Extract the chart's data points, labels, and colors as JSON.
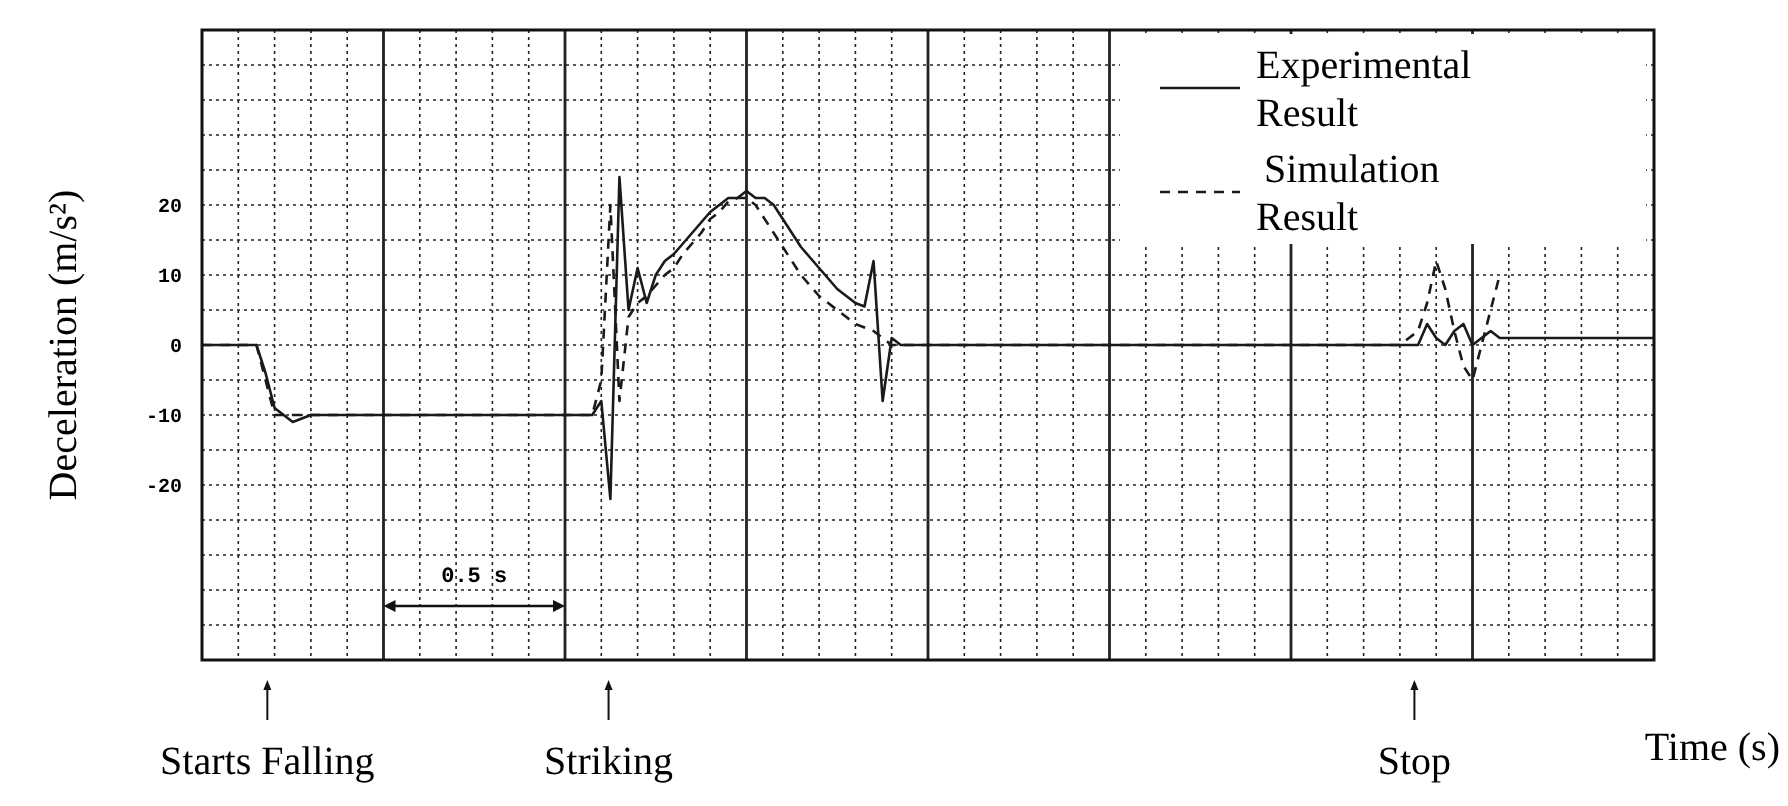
{
  "chart_data": {
    "type": "line",
    "xlabel": "Time (s)",
    "ylabel": "Deceleration (m/s²)",
    "categories": [
      null,
      null,
      null,
      null,
      null,
      null,
      null,
      null,
      null,
      null,
      null,
      null,
      null,
      null,
      null,
      null,
      null,
      null,
      null,
      null,
      null,
      null,
      null,
      null,
      null,
      null,
      null,
      null,
      null,
      null,
      null,
      null,
      null,
      null,
      null,
      null,
      null,
      null,
      null,
      null,
      null,
      null,
      null,
      null,
      null,
      null,
      null,
      null,
      null,
      null,
      null,
      null,
      null,
      null,
      null,
      null,
      null,
      null,
      null,
      null,
      null,
      null,
      null,
      null,
      null,
      null,
      null,
      null,
      null,
      null,
      null,
      null,
      null,
      null,
      null,
      null,
      null,
      null,
      null,
      null,
      null,
      null,
      null,
      null,
      null,
      null,
      null,
      null,
      null,
      null,
      null,
      null,
      null,
      null,
      null,
      null,
      null,
      null,
      null,
      null,
      null,
      null,
      null,
      null,
      null,
      null,
      null,
      null,
      null,
      null,
      null,
      null,
      null,
      null,
      null,
      null,
      null,
      null,
      null,
      null,
      null,
      null,
      null,
      null,
      null,
      null,
      null,
      null,
      null,
      null,
      null,
      null,
      null,
      null,
      null,
      null,
      null,
      null,
      null,
      null,
      null,
      null,
      null,
      null,
      null,
      null,
      null,
      null,
      null,
      null,
      null,
      null,
      null,
      null,
      null,
      null,
      null,
      null,
      null,
      null,
      null
    ],
    "ylim": [
      -45,
      45
    ],
    "yticks": [
      {
        "value": -40,
        "label": null
      },
      {
        "value": -35,
        "label": null
      },
      {
        "value": -30,
        "label": null
      },
      {
        "value": -25,
        "label": null
      },
      -20,
      {
        "value": -15,
        "label": null
      },
      -10,
      {
        "value": -5,
        "label": null
      },
      0,
      {
        "value": 5,
        "label": null
      },
      10,
      {
        "value": 15,
        "label": null
      },
      20,
      {
        "value": 25,
        "label": null
      },
      {
        "value": 30,
        "label": null
      },
      {
        "value": 35,
        "label": null
      },
      {
        "value": 40,
        "label": null
      }
    ],
    "grid": true,
    "legend": "top right",
    "tick_labels": "y",
    "series": [
      {
        "name": "Experimental Result",
        "color": "#1a1a1a",
        "line_style": "solid",
        "values": [
          0,
          0,
          0,
          0,
          0,
          0,
          0,
          -4,
          -9,
          -10,
          -11,
          -10.5,
          -10,
          -10,
          -10,
          -10,
          -10,
          -10,
          -10,
          -10,
          -10,
          -10,
          -10,
          -10,
          -10,
          -10,
          -10,
          -10,
          -10,
          -10,
          -10,
          -10,
          -10,
          -10,
          -10,
          -10,
          -10,
          -10,
          -10,
          -10,
          -10,
          -10,
          -10,
          -10,
          -8,
          -22,
          24,
          5,
          11,
          6,
          10,
          12,
          13,
          14.5,
          16,
          17.5,
          19,
          20,
          21,
          21,
          22,
          21,
          21,
          20,
          18,
          16,
          14,
          12.5,
          11,
          9.5,
          8,
          7,
          6,
          5.5,
          12,
          -8,
          1,
          0,
          0,
          0,
          0,
          0,
          0,
          0,
          0,
          0,
          0,
          0,
          0,
          0,
          0,
          0,
          0,
          0,
          0,
          0,
          0,
          0,
          0,
          0,
          0,
          0,
          0,
          0,
          0,
          0,
          0,
          0,
          0,
          0,
          0,
          0,
          0,
          0,
          0,
          0,
          0,
          0,
          0,
          0,
          0,
          0,
          0,
          0,
          0,
          0,
          0,
          0,
          0,
          0,
          0,
          0,
          0,
          0,
          0,
          3,
          1,
          0,
          2,
          3,
          0,
          1,
          2,
          1,
          1,
          1,
          1,
          1,
          1,
          1,
          1,
          1,
          1,
          1,
          1,
          1,
          1,
          1,
          1,
          1,
          1
        ]
      },
      {
        "name": "Simulation Result",
        "color": "#1a1a1a",
        "line_style": "dashed",
        "values": [
          0,
          0,
          0,
          0,
          0,
          0,
          0,
          -5,
          -10,
          -10,
          -10,
          -10,
          -10,
          -10,
          -10,
          -10,
          -10,
          -10,
          -10,
          -10,
          -10,
          -10,
          -10,
          -10,
          -10,
          -10,
          -10,
          -10,
          -10,
          -10,
          -10,
          -10,
          -10,
          -10,
          -10,
          -10,
          -10,
          -10,
          -10,
          -10,
          -10,
          -10,
          -10,
          -10,
          -5,
          20,
          -8,
          4,
          6,
          7,
          8.5,
          10,
          11,
          13,
          14.5,
          16,
          18,
          19,
          20.5,
          21,
          21,
          20,
          18,
          16,
          14,
          12,
          10,
          8.5,
          7,
          6,
          5,
          4,
          3,
          2.5,
          2,
          1,
          0,
          0,
          0,
          0,
          0,
          0,
          0,
          0,
          0,
          0,
          0,
          0,
          0,
          0,
          0,
          0,
          0,
          0,
          0,
          0,
          0,
          0,
          0,
          0,
          0,
          0,
          0,
          0,
          0,
          0,
          0,
          0,
          0,
          0,
          0,
          0,
          0,
          0,
          0,
          0,
          0,
          0,
          0,
          0,
          0,
          0,
          0,
          0,
          0,
          0,
          0,
          0,
          0,
          0,
          0,
          0,
          0,
          1,
          2,
          6,
          12,
          8,
          2,
          -3,
          -5,
          0,
          5,
          10,
          null,
          null,
          null,
          null,
          null,
          null,
          null,
          null,
          null,
          null,
          null,
          null,
          null,
          null,
          null,
          null,
          null
        ]
      }
    ],
    "annotations": [
      "Starts Falling",
      "Striking",
      "Stop",
      "0.5 s"
    ]
  }
}
